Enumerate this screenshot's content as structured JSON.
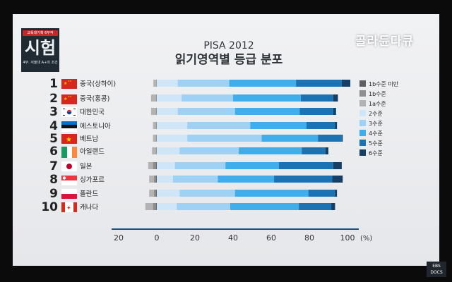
{
  "broadcast": {
    "logo_tag": "교육대기획 6부작",
    "logo_title": "시험",
    "logo_sub": "4부. 서울대 A+의 조건",
    "brand": "골라듄다큐",
    "watermark": "EBS DOCS"
  },
  "colors": {
    "lv1b_below": "#5f5f5f",
    "lv1b": "#8e8e8e",
    "lv1a": "#b3b3b3",
    "lv2": "#cfe6f8",
    "lv3": "#9fd1f5",
    "lv4": "#41aeec",
    "lv5": "#1c73b4",
    "lv6": "#173f63"
  },
  "chart_data": {
    "type": "bar",
    "stacked": "diverging",
    "title": "PISA 2012",
    "subtitle": "읽기영역별 등급 분포",
    "xlim": [
      -20,
      100
    ],
    "xticks": [
      "20",
      "0",
      "20",
      "40",
      "60",
      "80",
      "100"
    ],
    "tick_values": [
      -20,
      0,
      20,
      40,
      60,
      80,
      100
    ],
    "xunit": "(%)",
    "categories": [
      {
        "rank": "1",
        "country": "중국(상하이)"
      },
      {
        "rank": "2",
        "country": "중국(홍콩)"
      },
      {
        "rank": "3",
        "country": "대한민국"
      },
      {
        "rank": "4",
        "country": "에스토니아"
      },
      {
        "rank": "5",
        "country": "베트남"
      },
      {
        "rank": "6",
        "country": "아일랜드"
      },
      {
        "rank": "7",
        "country": "일본"
      },
      {
        "rank": "8",
        "country": "싱가포르"
      },
      {
        "rank": "9",
        "country": "폴란드"
      },
      {
        "rank": "10",
        "country": "캐나다"
      }
    ],
    "series": [
      {
        "name": "1b수준 미만",
        "color_key": "lv1b_below",
        "side": "below",
        "values": [
          0,
          0,
          0,
          0,
          0,
          0,
          0.5,
          0.5,
          0.5,
          0.5
        ]
      },
      {
        "name": "1b수준",
        "color_key": "lv1b",
        "side": "below",
        "values": [
          0.3,
          0.5,
          0.5,
          0.5,
          0.5,
          0.5,
          1.5,
          1,
          1,
          1.5
        ]
      },
      {
        "name": "1a수준",
        "color_key": "lv1a",
        "side": "below",
        "values": [
          1.5,
          2.5,
          2.5,
          1.5,
          1.5,
          2,
          2.5,
          2.5,
          2.5,
          4
        ]
      },
      {
        "name": "2수준",
        "color_key": "lv2",
        "side": "above",
        "values": [
          11,
          13,
          11,
          16,
          16,
          12,
          9.5,
          8.5,
          12,
          10.5
        ]
      },
      {
        "name": "3수준",
        "color_key": "lv3",
        "side": "above",
        "values": [
          27,
          27,
          30,
          33,
          39,
          31,
          26.5,
          23.5,
          29,
          28
        ]
      },
      {
        "name": "4수준",
        "color_key": "lv4",
        "side": "above",
        "values": [
          35,
          35.5,
          34,
          29.5,
          29.5,
          33,
          28,
          29.5,
          38.5,
          36
        ]
      },
      {
        "name": "5수준",
        "color_key": "lv5",
        "side": "above",
        "values": [
          24,
          17,
          17.5,
          15,
          12.5,
          12.5,
          28.5,
          30.5,
          14,
          17
        ]
      },
      {
        "name": "6수준",
        "color_key": "lv6",
        "side": "above",
        "values": [
          4.5,
          2.5,
          1.5,
          1,
          0.5,
          1.5,
          4.5,
          5.5,
          1,
          2
        ]
      }
    ],
    "legend_position": "right"
  }
}
